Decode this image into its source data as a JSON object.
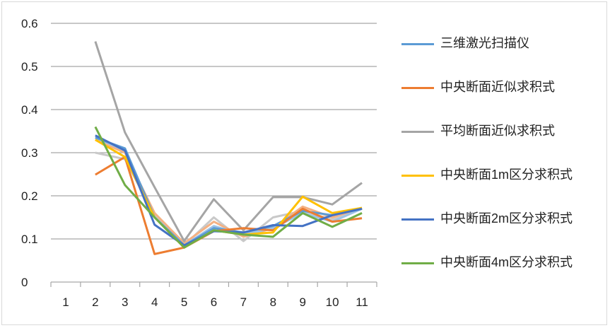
{
  "chart_data": {
    "type": "line",
    "title": "",
    "xlabel": "",
    "ylabel": "",
    "categories": [
      "1",
      "2",
      "3",
      "4",
      "5",
      "6",
      "7",
      "8",
      "9",
      "10",
      "11"
    ],
    "ylim": [
      0,
      0.6
    ],
    "yticks": [
      "0",
      "0.1",
      "0.2",
      "0.3",
      "0.4",
      "0.5",
      "0.6"
    ],
    "grid": true,
    "legend_position": "right",
    "series": [
      {
        "name": "三维激光扫描仪",
        "color": "#5b9bd5",
        "values": [
          null,
          0.335,
          0.31,
          0.15,
          0.085,
          0.125,
          0.115,
          0.13,
          0.165,
          0.155,
          0.17
        ]
      },
      {
        "name": "中央断面近似求积式",
        "color": "#ed7d31",
        "values": [
          null,
          0.249,
          0.29,
          0.065,
          0.08,
          0.118,
          0.125,
          0.12,
          0.17,
          0.14,
          0.148
        ]
      },
      {
        "name": "平均断面近似求积式",
        "color": "#a5a5a5",
        "values": [
          null,
          0.558,
          0.347,
          0.22,
          0.095,
          0.192,
          0.12,
          0.197,
          0.197,
          0.18,
          0.23
        ]
      },
      {
        "name": "中央断面1m区分求积式",
        "color": "#ffc000",
        "values": [
          null,
          0.33,
          0.29,
          0.15,
          0.08,
          0.12,
          0.11,
          0.115,
          0.198,
          0.16,
          0.172
        ]
      },
      {
        "name": "中央断面2m区分求积式",
        "color": "#4472c4",
        "values": [
          null,
          0.34,
          0.305,
          0.133,
          0.085,
          0.118,
          0.115,
          0.132,
          0.13,
          0.155,
          0.17
        ]
      },
      {
        "name": "中央断面4m区分求积式",
        "color": "#70ad47",
        "values": [
          null,
          0.36,
          0.225,
          0.15,
          0.08,
          0.12,
          0.11,
          0.105,
          0.16,
          0.128,
          0.16
        ]
      },
      {
        "color": "#c9c9c9",
        "values": [
          null,
          0.3,
          0.285,
          0.155,
          0.085,
          0.15,
          0.095,
          0.15,
          0.165,
          0.145,
          0.17
        ]
      },
      {
        "color": "#f4b183",
        "values": [
          null,
          0.33,
          0.3,
          0.16,
          0.09,
          0.14,
          0.105,
          0.125,
          0.175,
          0.15,
          0.172
        ]
      },
      {
        "color": "#9dc3e6",
        "values": [
          null,
          0.335,
          0.305,
          0.15,
          0.085,
          0.13,
          0.11,
          0.125,
          0.16,
          0.14,
          0.17
        ]
      }
    ]
  }
}
